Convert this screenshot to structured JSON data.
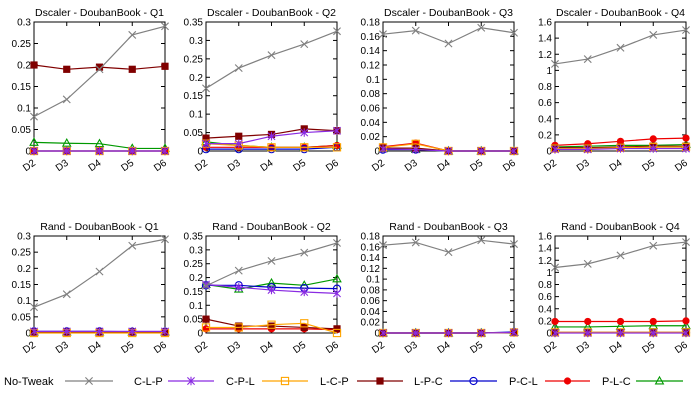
{
  "series_styles": [
    {
      "name": "No-Tweak",
      "color": "#808080",
      "marker": "x"
    },
    {
      "name": "C-L-P",
      "color": "#8a2be2",
      "marker": "asterisk"
    },
    {
      "name": "C-P-L",
      "color": "#ffa500",
      "marker": "square-open"
    },
    {
      "name": "L-C-P",
      "color": "#800000",
      "marker": "square-filled"
    },
    {
      "name": "L-P-C",
      "color": "#0000cc",
      "marker": "circle-open"
    },
    {
      "name": "P-C-L",
      "color": "#ee0000",
      "marker": "circle-filled"
    },
    {
      "name": "P-L-C",
      "color": "#009900",
      "marker": "triangle-open"
    }
  ],
  "chart_data": [
    {
      "type": "line",
      "title": "Dscaler - DoubanBook - Q1",
      "x": [
        "D2",
        "D3",
        "D4",
        "D5",
        "D6"
      ],
      "ylim": [
        0,
        0.3
      ],
      "yticks": [
        "0",
        "0.05",
        "0.1",
        "0.15",
        "0.2",
        "0.25",
        "0.3"
      ],
      "series": [
        {
          "name": "No-Tweak",
          "values": [
            0.08,
            0.12,
            0.19,
            0.27,
            0.29
          ]
        },
        {
          "name": "C-L-P",
          "values": [
            0.0,
            0.0,
            0.0,
            0.0,
            0.0
          ]
        },
        {
          "name": "C-P-L",
          "values": [
            0.0,
            0.0,
            0.0,
            0.0,
            0.0
          ]
        },
        {
          "name": "L-C-P",
          "values": [
            0.2,
            0.19,
            0.195,
            0.19,
            0.197
          ]
        },
        {
          "name": "L-P-C",
          "values": [
            0.0,
            0.0,
            0.0,
            0.0,
            0.0
          ]
        },
        {
          "name": "P-C-L",
          "values": [
            0.0,
            0.0,
            0.0,
            0.0,
            0.0
          ]
        },
        {
          "name": "P-L-C",
          "values": [
            0.02,
            0.018,
            0.017,
            0.006,
            0.006
          ]
        }
      ]
    },
    {
      "type": "line",
      "title": "Dscaler - DoubanBook - Q2",
      "x": [
        "D2",
        "D3",
        "D4",
        "D5",
        "D6"
      ],
      "ylim": [
        0,
        0.35
      ],
      "yticks": [
        "0",
        "0.05",
        "0.1",
        "0.15",
        "0.2",
        "0.25",
        "0.3",
        "0.35"
      ],
      "series": [
        {
          "name": "No-Tweak",
          "values": [
            0.17,
            0.225,
            0.26,
            0.29,
            0.325
          ]
        },
        {
          "name": "C-L-P",
          "values": [
            0.02,
            0.02,
            0.04,
            0.05,
            0.055
          ]
        },
        {
          "name": "C-P-L",
          "values": [
            0.02,
            0.015,
            0.01,
            0.01,
            0.01
          ]
        },
        {
          "name": "L-C-P",
          "values": [
            0.035,
            0.04,
            0.045,
            0.06,
            0.055
          ]
        },
        {
          "name": "L-P-C",
          "values": [
            0.005,
            0.005,
            0.005,
            0.005,
            0.01
          ]
        },
        {
          "name": "P-C-L",
          "values": [
            0.01,
            0.01,
            0.01,
            0.01,
            0.015
          ]
        },
        {
          "name": "P-L-C",
          "values": [
            0.025,
            0.015,
            0.01,
            0.01,
            0.015
          ]
        }
      ]
    },
    {
      "type": "line",
      "title": "Dscaler - DoubanBook - Q3",
      "x": [
        "D2",
        "D3",
        "D4",
        "D5",
        "D6"
      ],
      "ylim": [
        0,
        0.18
      ],
      "yticks": [
        "0",
        "0.02",
        "0.04",
        "0.06",
        "0.08",
        "0.1",
        "0.12",
        "0.14",
        "0.16",
        "0.18"
      ],
      "series": [
        {
          "name": "No-Tweak",
          "values": [
            0.163,
            0.168,
            0.15,
            0.172,
            0.165
          ]
        },
        {
          "name": "C-L-P",
          "values": [
            0.003,
            0.002,
            0.0,
            0.0,
            0.0
          ]
        },
        {
          "name": "C-P-L",
          "values": [
            0.005,
            0.01,
            0.0,
            0.0,
            0.0
          ]
        },
        {
          "name": "L-C-P",
          "values": [
            0.004,
            0.004,
            0.0,
            0.0,
            0.0
          ]
        },
        {
          "name": "L-P-C",
          "values": [
            0.002,
            0.002,
            0.0,
            0.0,
            0.0
          ]
        },
        {
          "name": "P-C-L",
          "values": [
            0.006,
            0.011,
            0.0,
            0.0,
            0.0
          ]
        },
        {
          "name": "P-L-C",
          "values": [
            0.003,
            0.002,
            0.0,
            0.0,
            0.0
          ]
        }
      ]
    },
    {
      "type": "line",
      "title": "Dscaler - DoubanBook - Q4",
      "x": [
        "D2",
        "D3",
        "D4",
        "D5",
        "D6"
      ],
      "ylim": [
        0,
        1.6
      ],
      "yticks": [
        "0",
        "0.2",
        "0.4",
        "0.6",
        "0.8",
        "1",
        "1.2",
        "1.4",
        "1.6"
      ],
      "series": [
        {
          "name": "No-Tweak",
          "values": [
            1.08,
            1.14,
            1.28,
            1.44,
            1.5
          ]
        },
        {
          "name": "C-L-P",
          "values": [
            0.02,
            0.02,
            0.03,
            0.03,
            0.03
          ]
        },
        {
          "name": "C-P-L",
          "values": [
            0.03,
            0.03,
            0.04,
            0.05,
            0.05
          ]
        },
        {
          "name": "L-C-P",
          "values": [
            0.04,
            0.04,
            0.05,
            0.06,
            0.06
          ]
        },
        {
          "name": "L-P-C",
          "values": [
            0.03,
            0.03,
            0.04,
            0.05,
            0.05
          ]
        },
        {
          "name": "P-C-L",
          "values": [
            0.07,
            0.09,
            0.12,
            0.15,
            0.16
          ]
        },
        {
          "name": "P-L-C",
          "values": [
            0.05,
            0.06,
            0.07,
            0.07,
            0.08
          ]
        }
      ]
    },
    {
      "type": "line",
      "title": "Rand - DoubanBook - Q1",
      "x": [
        "D2",
        "D3",
        "D4",
        "D5",
        "D6"
      ],
      "ylim": [
        0,
        0.3
      ],
      "yticks": [
        "0",
        "0.05",
        "0.1",
        "0.15",
        "0.2",
        "0.25",
        "0.3"
      ],
      "series": [
        {
          "name": "No-Tweak",
          "values": [
            0.08,
            0.12,
            0.19,
            0.27,
            0.29
          ]
        },
        {
          "name": "C-L-P",
          "values": [
            0.005,
            0.005,
            0.005,
            0.005,
            0.005
          ]
        },
        {
          "name": "C-P-L",
          "values": [
            0.0,
            0.0,
            0.0,
            0.0,
            0.0
          ]
        },
        {
          "name": "L-C-P",
          "values": [
            0.003,
            0.003,
            0.003,
            0.003,
            0.003
          ]
        },
        {
          "name": "L-P-C",
          "values": [
            0.005,
            0.005,
            0.005,
            0.004,
            0.004
          ]
        },
        {
          "name": "P-C-L",
          "values": [
            0.002,
            0.002,
            0.002,
            0.002,
            0.002
          ]
        },
        {
          "name": "P-L-C",
          "values": [
            0.003,
            0.003,
            0.003,
            0.003,
            0.003
          ]
        }
      ]
    },
    {
      "type": "line",
      "title": "Rand - DoubanBook - Q2",
      "x": [
        "D2",
        "D3",
        "D4",
        "D5",
        "D6"
      ],
      "ylim": [
        0,
        0.35
      ],
      "yticks": [
        "0",
        "0.05",
        "0.1",
        "0.15",
        "0.2",
        "0.25",
        "0.3",
        "0.35"
      ],
      "series": [
        {
          "name": "No-Tweak",
          "values": [
            0.17,
            0.225,
            0.26,
            0.29,
            0.325
          ]
        },
        {
          "name": "C-L-P",
          "values": [
            0.175,
            0.165,
            0.155,
            0.148,
            0.143
          ]
        },
        {
          "name": "C-P-L",
          "values": [
            0.02,
            0.02,
            0.03,
            0.035,
            0.0
          ]
        },
        {
          "name": "L-C-P",
          "values": [
            0.05,
            0.025,
            0.025,
            0.02,
            0.015
          ]
        },
        {
          "name": "L-P-C",
          "values": [
            0.172,
            0.172,
            0.165,
            0.162,
            0.16
          ]
        },
        {
          "name": "P-C-L",
          "values": [
            0.015,
            0.015,
            0.015,
            0.015,
            0.012
          ]
        },
        {
          "name": "P-L-C",
          "values": [
            0.175,
            0.158,
            0.18,
            0.172,
            0.195
          ]
        }
      ]
    },
    {
      "type": "line",
      "title": "Rand - DoubanBook - Q3",
      "x": [
        "D2",
        "D3",
        "D4",
        "D5",
        "D6"
      ],
      "ylim": [
        0,
        0.18
      ],
      "yticks": [
        "0",
        "0.02",
        "0.04",
        "0.06",
        "0.08",
        "0.1",
        "0.12",
        "0.14",
        "0.16",
        "0.18"
      ],
      "series": [
        {
          "name": "No-Tweak",
          "values": [
            0.163,
            0.168,
            0.15,
            0.172,
            0.165
          ]
        },
        {
          "name": "C-L-P",
          "values": [
            0.0,
            0.0,
            0.0,
            0.0,
            0.001
          ]
        },
        {
          "name": "C-P-L",
          "values": [
            0.0,
            0.0,
            0.0,
            0.0,
            0.001
          ]
        },
        {
          "name": "L-C-P",
          "values": [
            0.0,
            0.0,
            0.0,
            0.0,
            0.001
          ]
        },
        {
          "name": "L-P-C",
          "values": [
            0.0,
            0.0,
            0.0,
            0.0,
            0.002
          ]
        },
        {
          "name": "P-C-L",
          "values": [
            0.0,
            0.0,
            0.0,
            0.0,
            0.001
          ]
        },
        {
          "name": "P-L-C",
          "values": [
            0.0,
            0.0,
            0.0,
            0.0,
            0.001
          ]
        }
      ]
    },
    {
      "type": "line",
      "title": "Rand - DoubanBook - Q4",
      "x": [
        "D2",
        "D3",
        "D4",
        "D5",
        "D6"
      ],
      "ylim": [
        0,
        1.6
      ],
      "yticks": [
        "0",
        "0.2",
        "0.4",
        "0.6",
        "0.8",
        "1",
        "1.2",
        "1.4",
        "1.6"
      ],
      "series": [
        {
          "name": "No-Tweak",
          "values": [
            1.08,
            1.14,
            1.28,
            1.44,
            1.5
          ]
        },
        {
          "name": "C-L-P",
          "values": [
            0.0,
            0.0,
            0.0,
            0.0,
            0.0
          ]
        },
        {
          "name": "C-P-L",
          "values": [
            0.01,
            0.01,
            0.01,
            0.01,
            0.01
          ]
        },
        {
          "name": "L-C-P",
          "values": [
            0.01,
            0.01,
            0.01,
            0.01,
            0.01
          ]
        },
        {
          "name": "L-P-C",
          "values": [
            0.005,
            0.005,
            0.005,
            0.005,
            0.005
          ]
        },
        {
          "name": "P-C-L",
          "values": [
            0.19,
            0.19,
            0.19,
            0.19,
            0.2
          ]
        },
        {
          "name": "P-L-C",
          "values": [
            0.1,
            0.1,
            0.11,
            0.12,
            0.12
          ]
        }
      ]
    }
  ]
}
